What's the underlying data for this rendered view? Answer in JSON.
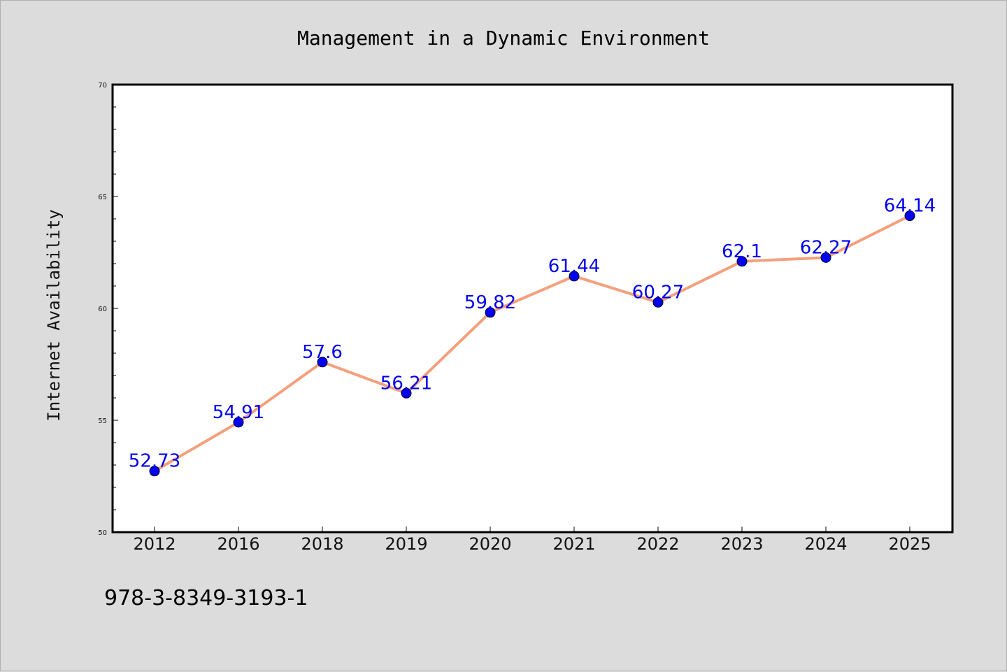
{
  "chart_data": {
    "type": "line",
    "title": "Management in a Dynamic Environment",
    "xlabel": "",
    "ylabel": "Internet Availability",
    "categories": [
      "2012",
      "2016",
      "2018",
      "2019",
      "2020",
      "2021",
      "2022",
      "2023",
      "2024",
      "2025"
    ],
    "series": [
      {
        "values": [
          52.73,
          54.91,
          57.6,
          56.21,
          59.82,
          61.44,
          60.27,
          62.1,
          62.27,
          64.14
        ],
        "labels": [
          "52.73",
          "54.91",
          "57.6",
          "56.21",
          "59.82",
          "61.44",
          "60.27",
          "62.1",
          "62.27",
          "64.14"
        ],
        "line_color": "#f4a07c",
        "marker_color": "#0000ee",
        "label_color": "#0000ee"
      }
    ],
    "ylim": [
      50,
      70
    ],
    "yticks": [
      "50",
      "55",
      "60",
      "65",
      "70"
    ],
    "grid": false,
    "legend": "none"
  },
  "footer_text": "978-3-8349-3193-1",
  "colors": {
    "background": "#dcdcdc",
    "plot_background": "#ffffff",
    "axis": "#000000"
  }
}
